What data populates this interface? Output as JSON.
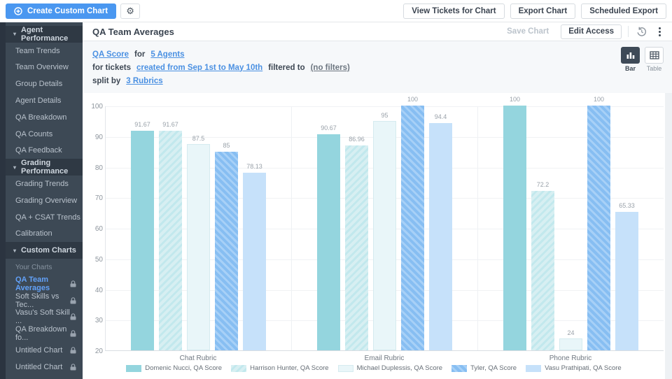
{
  "topbar": {
    "create_button": "Create Custom Chart",
    "view_tickets_button": "View Tickets for Chart",
    "export_chart_button": "Export Chart",
    "scheduled_export_button": "Scheduled Export"
  },
  "sidebar": {
    "rows": [
      {
        "type": "header",
        "label": "Agent Performance"
      },
      {
        "type": "item",
        "label": "Team Trends"
      },
      {
        "type": "item",
        "label": "Team Overview"
      },
      {
        "type": "item",
        "label": "Group Details"
      },
      {
        "type": "item",
        "label": "Agent Details"
      },
      {
        "type": "item",
        "label": "QA Breakdown"
      },
      {
        "type": "item",
        "label": "QA Counts"
      },
      {
        "type": "item",
        "label": "QA Feedback"
      },
      {
        "type": "header",
        "label": "Grading Performance"
      },
      {
        "type": "item",
        "label": "Grading Trends"
      },
      {
        "type": "item",
        "label": "Grading Overview"
      },
      {
        "type": "item",
        "label": "QA + CSAT Trends"
      },
      {
        "type": "item",
        "label": "Calibration"
      },
      {
        "type": "header",
        "label": "Custom Charts"
      },
      {
        "type": "sublabel",
        "label": "Your Charts"
      },
      {
        "type": "chart",
        "label": "QA Team Averages",
        "active": true,
        "locked": true
      },
      {
        "type": "chart",
        "label": "Soft Skills vs Tec...",
        "active": false,
        "locked": true
      },
      {
        "type": "chart",
        "label": "Vasu's Soft Skill ...",
        "active": false,
        "locked": true
      },
      {
        "type": "chart",
        "label": "QA Breakdown fo...",
        "active": false,
        "locked": true
      },
      {
        "type": "chart",
        "label": "Untitled Chart",
        "active": false,
        "locked": true
      },
      {
        "type": "chart",
        "label": "Untitled Chart",
        "active": false,
        "locked": true
      }
    ]
  },
  "chart_header": {
    "title": "QA Team Averages",
    "save_button": "Save Chart",
    "edit_access_button": "Edit Access"
  },
  "filters": {
    "lines": [
      [
        {
          "type": "link",
          "text": "QA Score"
        },
        {
          "type": "text",
          "text": "for"
        },
        {
          "type": "link",
          "text": "5 Agents"
        }
      ],
      [
        {
          "type": "text",
          "text": "for tickets"
        },
        {
          "type": "link",
          "text": "created from Sep 1st to May 10th"
        },
        {
          "type": "text",
          "text": "filtered to"
        },
        {
          "type": "muted",
          "text": "(no filters)"
        }
      ],
      [
        {
          "type": "text",
          "text": "split by"
        },
        {
          "type": "link",
          "text": "3 Rubrics"
        }
      ]
    ]
  },
  "view_toggle": {
    "bar_label": "Bar",
    "table_label": "Table",
    "active": "Bar"
  },
  "colors": {
    "accent_blue": "#4a97f0",
    "link_blue": "#4a90e2",
    "sidebar_bg": "#3d4955",
    "sidebar_header_bg": "#2f3944",
    "active_item_blue": "#62a1f8",
    "filter_bg": "#f6f8fa"
  },
  "chart_data": {
    "type": "bar",
    "title": "",
    "xlabel": "",
    "ylabel": "",
    "categories": [
      "Chat Rubric",
      "Email Rubric",
      "Phone Rubric"
    ],
    "series": [
      {
        "name": "Domenic Nucci, QA Score",
        "values": [
          91.67,
          90.67,
          100
        ],
        "color": "#94d5de",
        "pattern": "none"
      },
      {
        "name": "Harrison Hunter, QA Score",
        "values": [
          91.67,
          86.96,
          72.2
        ],
        "color": "#d7eff2",
        "stripe": "#c2e8ed",
        "pattern": "diag-up"
      },
      {
        "name": "Michael Duplessis, QA Score",
        "values": [
          87.5,
          95,
          24
        ],
        "color": "#e9f6f9",
        "border": "#d5ebef",
        "pattern": "none"
      },
      {
        "name": "Tyler, QA Score",
        "values": [
          85,
          100,
          100
        ],
        "color": "#87bef2",
        "stripe": "#a7d0f7",
        "pattern": "diag-down"
      },
      {
        "name": "Vasu Prathipati, QA Score",
        "values": [
          78.13,
          94.4,
          65.33
        ],
        "color": "#c6e1fa",
        "pattern": "none"
      }
    ],
    "ylim": [
      20,
      100
    ],
    "ytick_step": 10,
    "grid": true,
    "legend_position": "bottom"
  }
}
